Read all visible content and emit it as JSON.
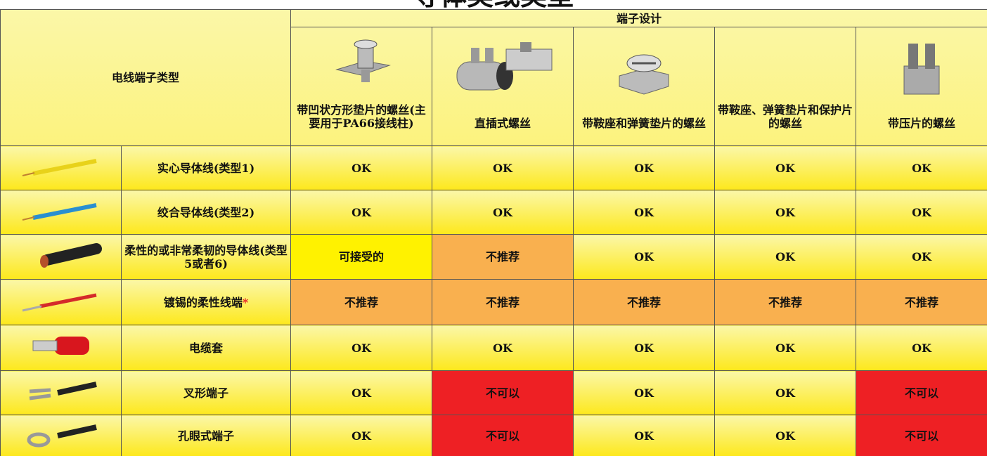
{
  "title": "导体类或类型",
  "header": {
    "wire_type": "电线端子类型",
    "terminal_design": "端子设计",
    "columns": [
      "带凹状方形垫片的螺丝(主要用于PA66接线柱)",
      "直插式螺丝",
      "带鞍座和弹簧垫片的螺丝",
      "带鞍座、弹簧垫片和保护片的螺丝",
      "带压片的螺丝"
    ]
  },
  "rows": [
    {
      "label": "实心导体线(类型1)",
      "cells": [
        {
          "text": "OK"
        },
        {
          "text": "OK"
        },
        {
          "text": "OK"
        },
        {
          "text": "OK"
        },
        {
          "text": "OK"
        }
      ]
    },
    {
      "label": "绞合导体线(类型2)",
      "cells": [
        {
          "text": "OK"
        },
        {
          "text": "OK"
        },
        {
          "text": "OK"
        },
        {
          "text": "OK"
        },
        {
          "text": "OK"
        }
      ]
    },
    {
      "label": "柔性的或非常柔韧的导体线(类型5或者6)",
      "cells": [
        {
          "text": "可接受的",
          "color": "#fff200"
        },
        {
          "text": "不推荐",
          "color": "#f9b04f"
        },
        {
          "text": "OK"
        },
        {
          "text": "OK"
        },
        {
          "text": "OK"
        }
      ]
    },
    {
      "label": "镀锡的柔性线端",
      "note_mark": "*",
      "cells": [
        {
          "text": "不推荐",
          "color": "#f9b04f"
        },
        {
          "text": "不推荐",
          "color": "#f9b04f"
        },
        {
          "text": "不推荐",
          "color": "#f9b04f"
        },
        {
          "text": "不推荐",
          "color": "#f9b04f"
        },
        {
          "text": "不推荐",
          "color": "#f9b04f"
        }
      ]
    },
    {
      "label": "电缆套",
      "cells": [
        {
          "text": "OK"
        },
        {
          "text": "OK"
        },
        {
          "text": "OK"
        },
        {
          "text": "OK"
        },
        {
          "text": "OK"
        }
      ]
    },
    {
      "label": "叉形端子",
      "cells": [
        {
          "text": "OK"
        },
        {
          "text": "不可以",
          "color": "#ee2024"
        },
        {
          "text": "OK"
        },
        {
          "text": "OK"
        },
        {
          "text": "不可以",
          "color": "#ee2024"
        }
      ]
    },
    {
      "label": "孔眼式端子",
      "cells": [
        {
          "text": "OK"
        },
        {
          "text": "不可以",
          "color": "#ee2024"
        },
        {
          "text": "OK"
        },
        {
          "text": "OK"
        },
        {
          "text": "不可以",
          "color": "#ee2024"
        }
      ]
    }
  ]
}
